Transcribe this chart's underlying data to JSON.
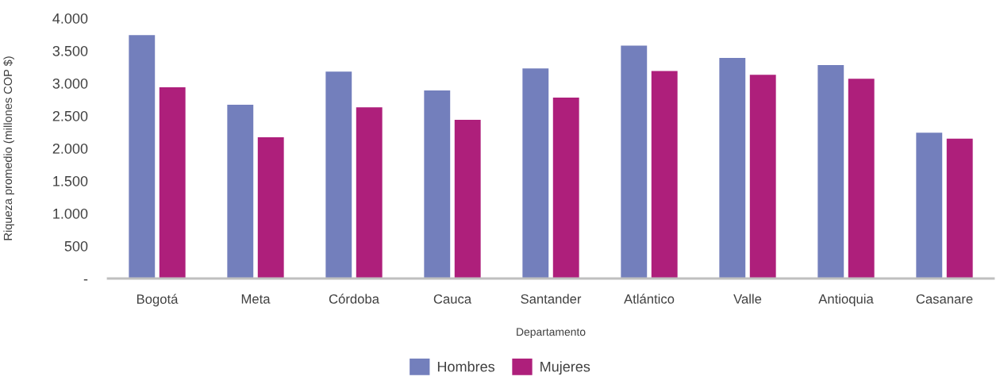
{
  "chart_data": {
    "type": "bar",
    "xlabel": "Departamento",
    "ylabel": "Riqueza promedio (millones COP $)",
    "categories": [
      "Bogotá",
      "Meta",
      "Córdoba",
      "Cauca",
      "Santander",
      "Atlántico",
      "Valle",
      "Antioquia",
      "Casanare"
    ],
    "series": [
      {
        "name": "Hombres",
        "color": "#737fbc",
        "values": [
          3740,
          2670,
          3180,
          2890,
          3230,
          3580,
          3390,
          3280,
          2240
        ]
      },
      {
        "name": "Mujeres",
        "color": "#ae1f7b",
        "values": [
          2940,
          2170,
          2630,
          2440,
          2780,
          3190,
          3130,
          3070,
          2150
        ]
      }
    ],
    "ylim": [
      0,
      4000
    ],
    "yticks": [
      {
        "value": 0,
        "label": "-"
      },
      500,
      {
        "value": 1000,
        "label": "1.000"
      },
      {
        "value": 1500,
        "label": "1.500"
      },
      {
        "value": 2000,
        "label": "2.000"
      },
      {
        "value": 2500,
        "label": "2.500"
      },
      {
        "value": 3000,
        "label": "3.000"
      },
      {
        "value": 3500,
        "label": "3.500"
      },
      {
        "value": 4000,
        "label": "4.000"
      }
    ],
    "legend": "bottom"
  }
}
